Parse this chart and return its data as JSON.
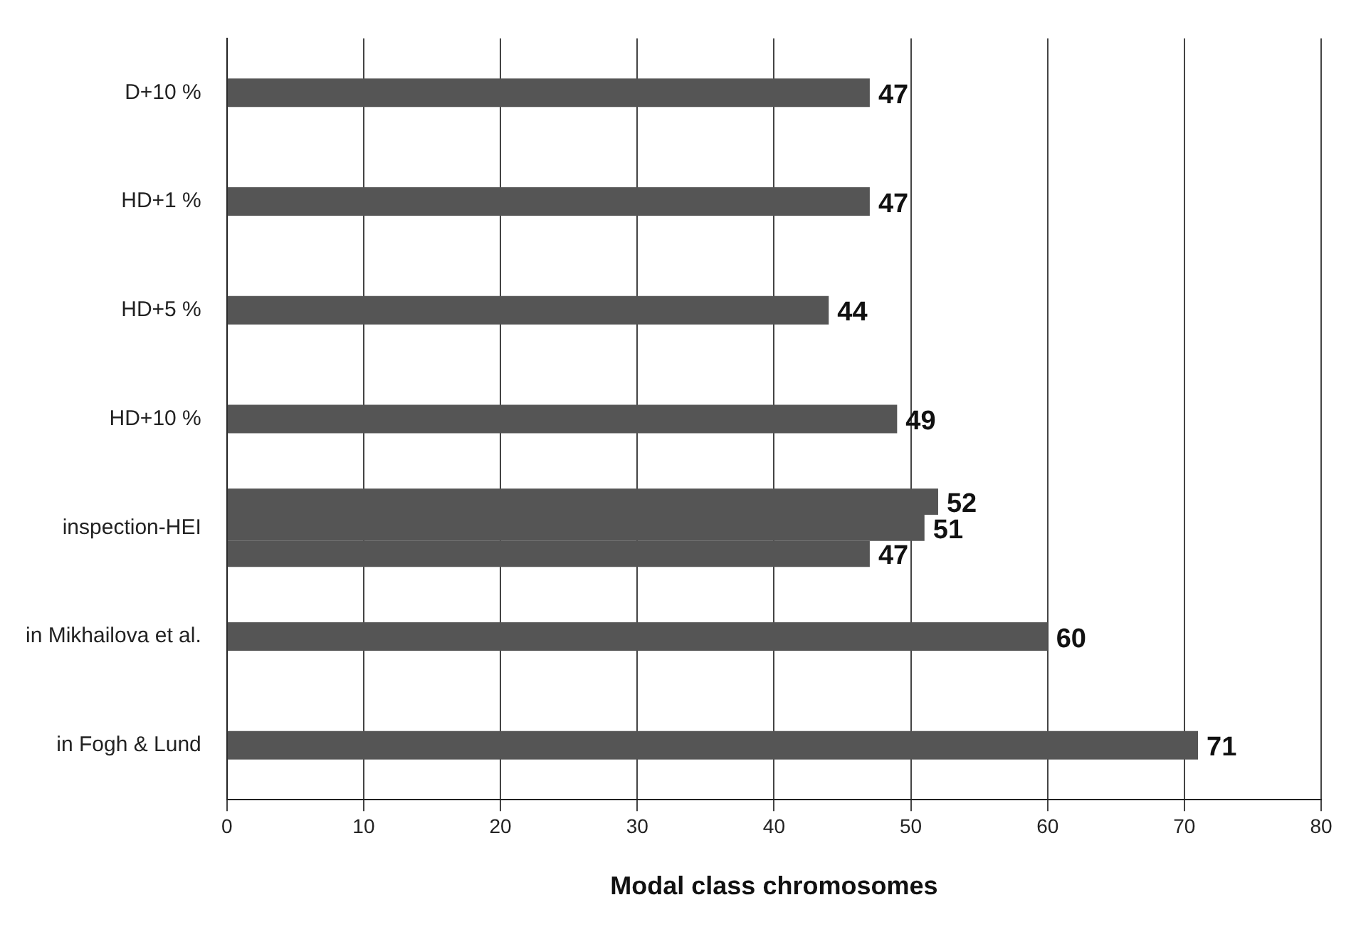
{
  "chart_data": {
    "type": "bar",
    "orientation": "horizontal",
    "xlabel": "Modal class chromosomes",
    "categories": [
      "D+10 %",
      "HD+1 %",
      "HD+5 %",
      "HD+10 %",
      "inspection-HEI",
      "in Mikhailova et al.",
      "in Fogh & Lund"
    ],
    "series": [
      {
        "color": "#555555",
        "values": [
          47,
          47,
          44,
          49,
          52,
          60,
          71
        ]
      },
      {
        "color": "#555555",
        "values": [
          null,
          null,
          null,
          null,
          51,
          null,
          null
        ]
      },
      {
        "color": "#555555",
        "values": [
          null,
          null,
          null,
          null,
          47,
          null,
          null
        ]
      }
    ],
    "xlim": [
      0,
      80
    ],
    "xticks": [
      0,
      10,
      20,
      30,
      40,
      50,
      60,
      70,
      80
    ],
    "grid": "x",
    "legend": false,
    "data_labels": true
  }
}
